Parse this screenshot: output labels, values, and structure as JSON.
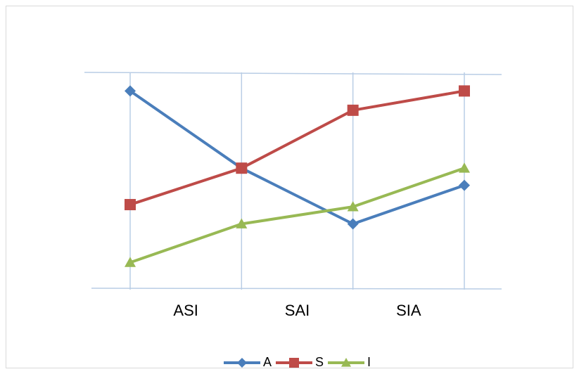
{
  "chart_data": {
    "type": "line",
    "categories": [
      "ASI",
      "SAI",
      "SIA",
      null
    ],
    "series": [
      {
        "name": "A",
        "color": "#4a7ebb",
        "marker": "diamond",
        "values": [
          0.92,
          0.56,
          0.3,
          0.48
        ]
      },
      {
        "name": "S",
        "color": "#be4b48",
        "marker": "square",
        "values": [
          0.39,
          0.56,
          0.83,
          0.92
        ]
      },
      {
        "name": "I",
        "color": "#98b954",
        "marker": "triangle",
        "values": [
          0.12,
          0.3,
          0.38,
          0.56
        ]
      }
    ],
    "ylim": [
      0,
      1
    ],
    "grid": true,
    "legend": "bottom"
  }
}
